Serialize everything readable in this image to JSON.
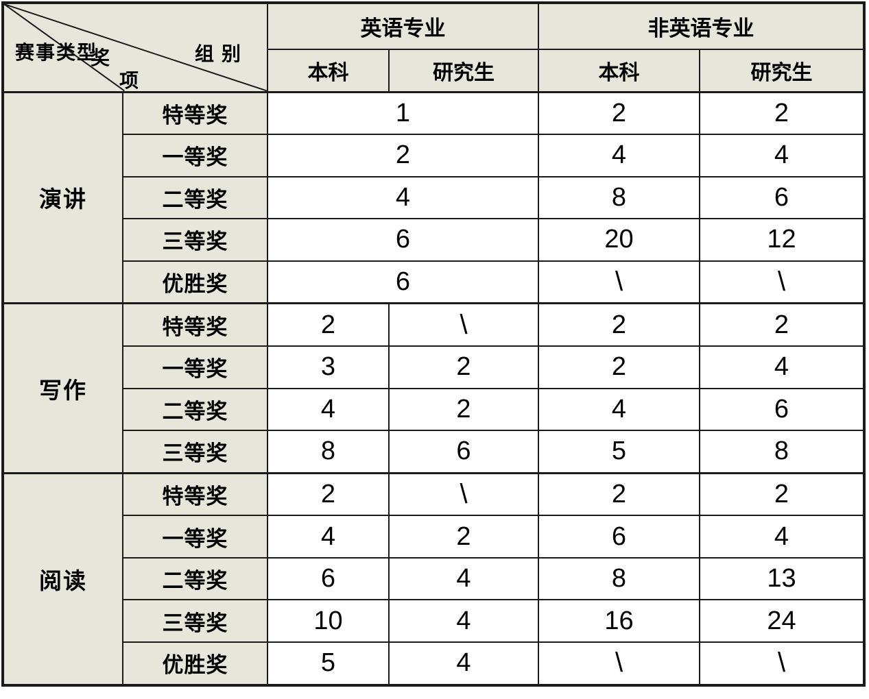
{
  "colors": {
    "label_cell_bg": "#e8e5da",
    "data_cell_bg": "#ffffff",
    "border": "#1a1a1a"
  },
  "header": {
    "corner": {
      "event_type": "赛事类型",
      "award_top": "奖",
      "award_bottom": "项",
      "group": "组 别"
    },
    "groups": [
      {
        "label": "英语专业",
        "subcolumns": [
          "本科",
          "研究生"
        ]
      },
      {
        "label": "非英语专业",
        "subcolumns": [
          "本科",
          "研究生"
        ]
      }
    ]
  },
  "sections": [
    {
      "name": "演讲",
      "rows": [
        {
          "award": "特等奖",
          "cells": [
            {
              "text": "1",
              "colspan": 2
            },
            {
              "text": "2"
            },
            {
              "text": "2"
            }
          ]
        },
        {
          "award": "一等奖",
          "cells": [
            {
              "text": "2",
              "colspan": 2
            },
            {
              "text": "4"
            },
            {
              "text": "4"
            }
          ]
        },
        {
          "award": "二等奖",
          "cells": [
            {
              "text": "4",
              "colspan": 2
            },
            {
              "text": "8"
            },
            {
              "text": "6"
            }
          ]
        },
        {
          "award": "三等奖",
          "cells": [
            {
              "text": "6",
              "colspan": 2
            },
            {
              "text": "20"
            },
            {
              "text": "12"
            }
          ]
        },
        {
          "award": "优胜奖",
          "cells": [
            {
              "text": "6",
              "colspan": 2
            },
            {
              "text": "\\"
            },
            {
              "text": "\\"
            }
          ]
        }
      ]
    },
    {
      "name": "写作",
      "rows": [
        {
          "award": "特等奖",
          "cells": [
            {
              "text": "2"
            },
            {
              "text": "\\"
            },
            {
              "text": "2"
            },
            {
              "text": "2"
            }
          ]
        },
        {
          "award": "一等奖",
          "cells": [
            {
              "text": "3"
            },
            {
              "text": "2"
            },
            {
              "text": "2"
            },
            {
              "text": "4"
            }
          ]
        },
        {
          "award": "二等奖",
          "cells": [
            {
              "text": "4"
            },
            {
              "text": "2"
            },
            {
              "text": "4"
            },
            {
              "text": "6"
            }
          ]
        },
        {
          "award": "三等奖",
          "cells": [
            {
              "text": "8"
            },
            {
              "text": "6"
            },
            {
              "text": "5"
            },
            {
              "text": "8"
            }
          ]
        }
      ]
    },
    {
      "name": "阅读",
      "rows": [
        {
          "award": "特等奖",
          "cells": [
            {
              "text": "2"
            },
            {
              "text": "\\"
            },
            {
              "text": "2"
            },
            {
              "text": "2"
            }
          ]
        },
        {
          "award": "一等奖",
          "cells": [
            {
              "text": "4"
            },
            {
              "text": "2"
            },
            {
              "text": "6"
            },
            {
              "text": "4"
            }
          ]
        },
        {
          "award": "二等奖",
          "cells": [
            {
              "text": "6"
            },
            {
              "text": "4"
            },
            {
              "text": "8"
            },
            {
              "text": "13"
            }
          ]
        },
        {
          "award": "三等奖",
          "cells": [
            {
              "text": "10"
            },
            {
              "text": "4"
            },
            {
              "text": "16"
            },
            {
              "text": "24"
            }
          ]
        },
        {
          "award": "优胜奖",
          "cells": [
            {
              "text": "5"
            },
            {
              "text": "4"
            },
            {
              "text": "\\"
            },
            {
              "text": "\\"
            }
          ]
        }
      ]
    }
  ]
}
